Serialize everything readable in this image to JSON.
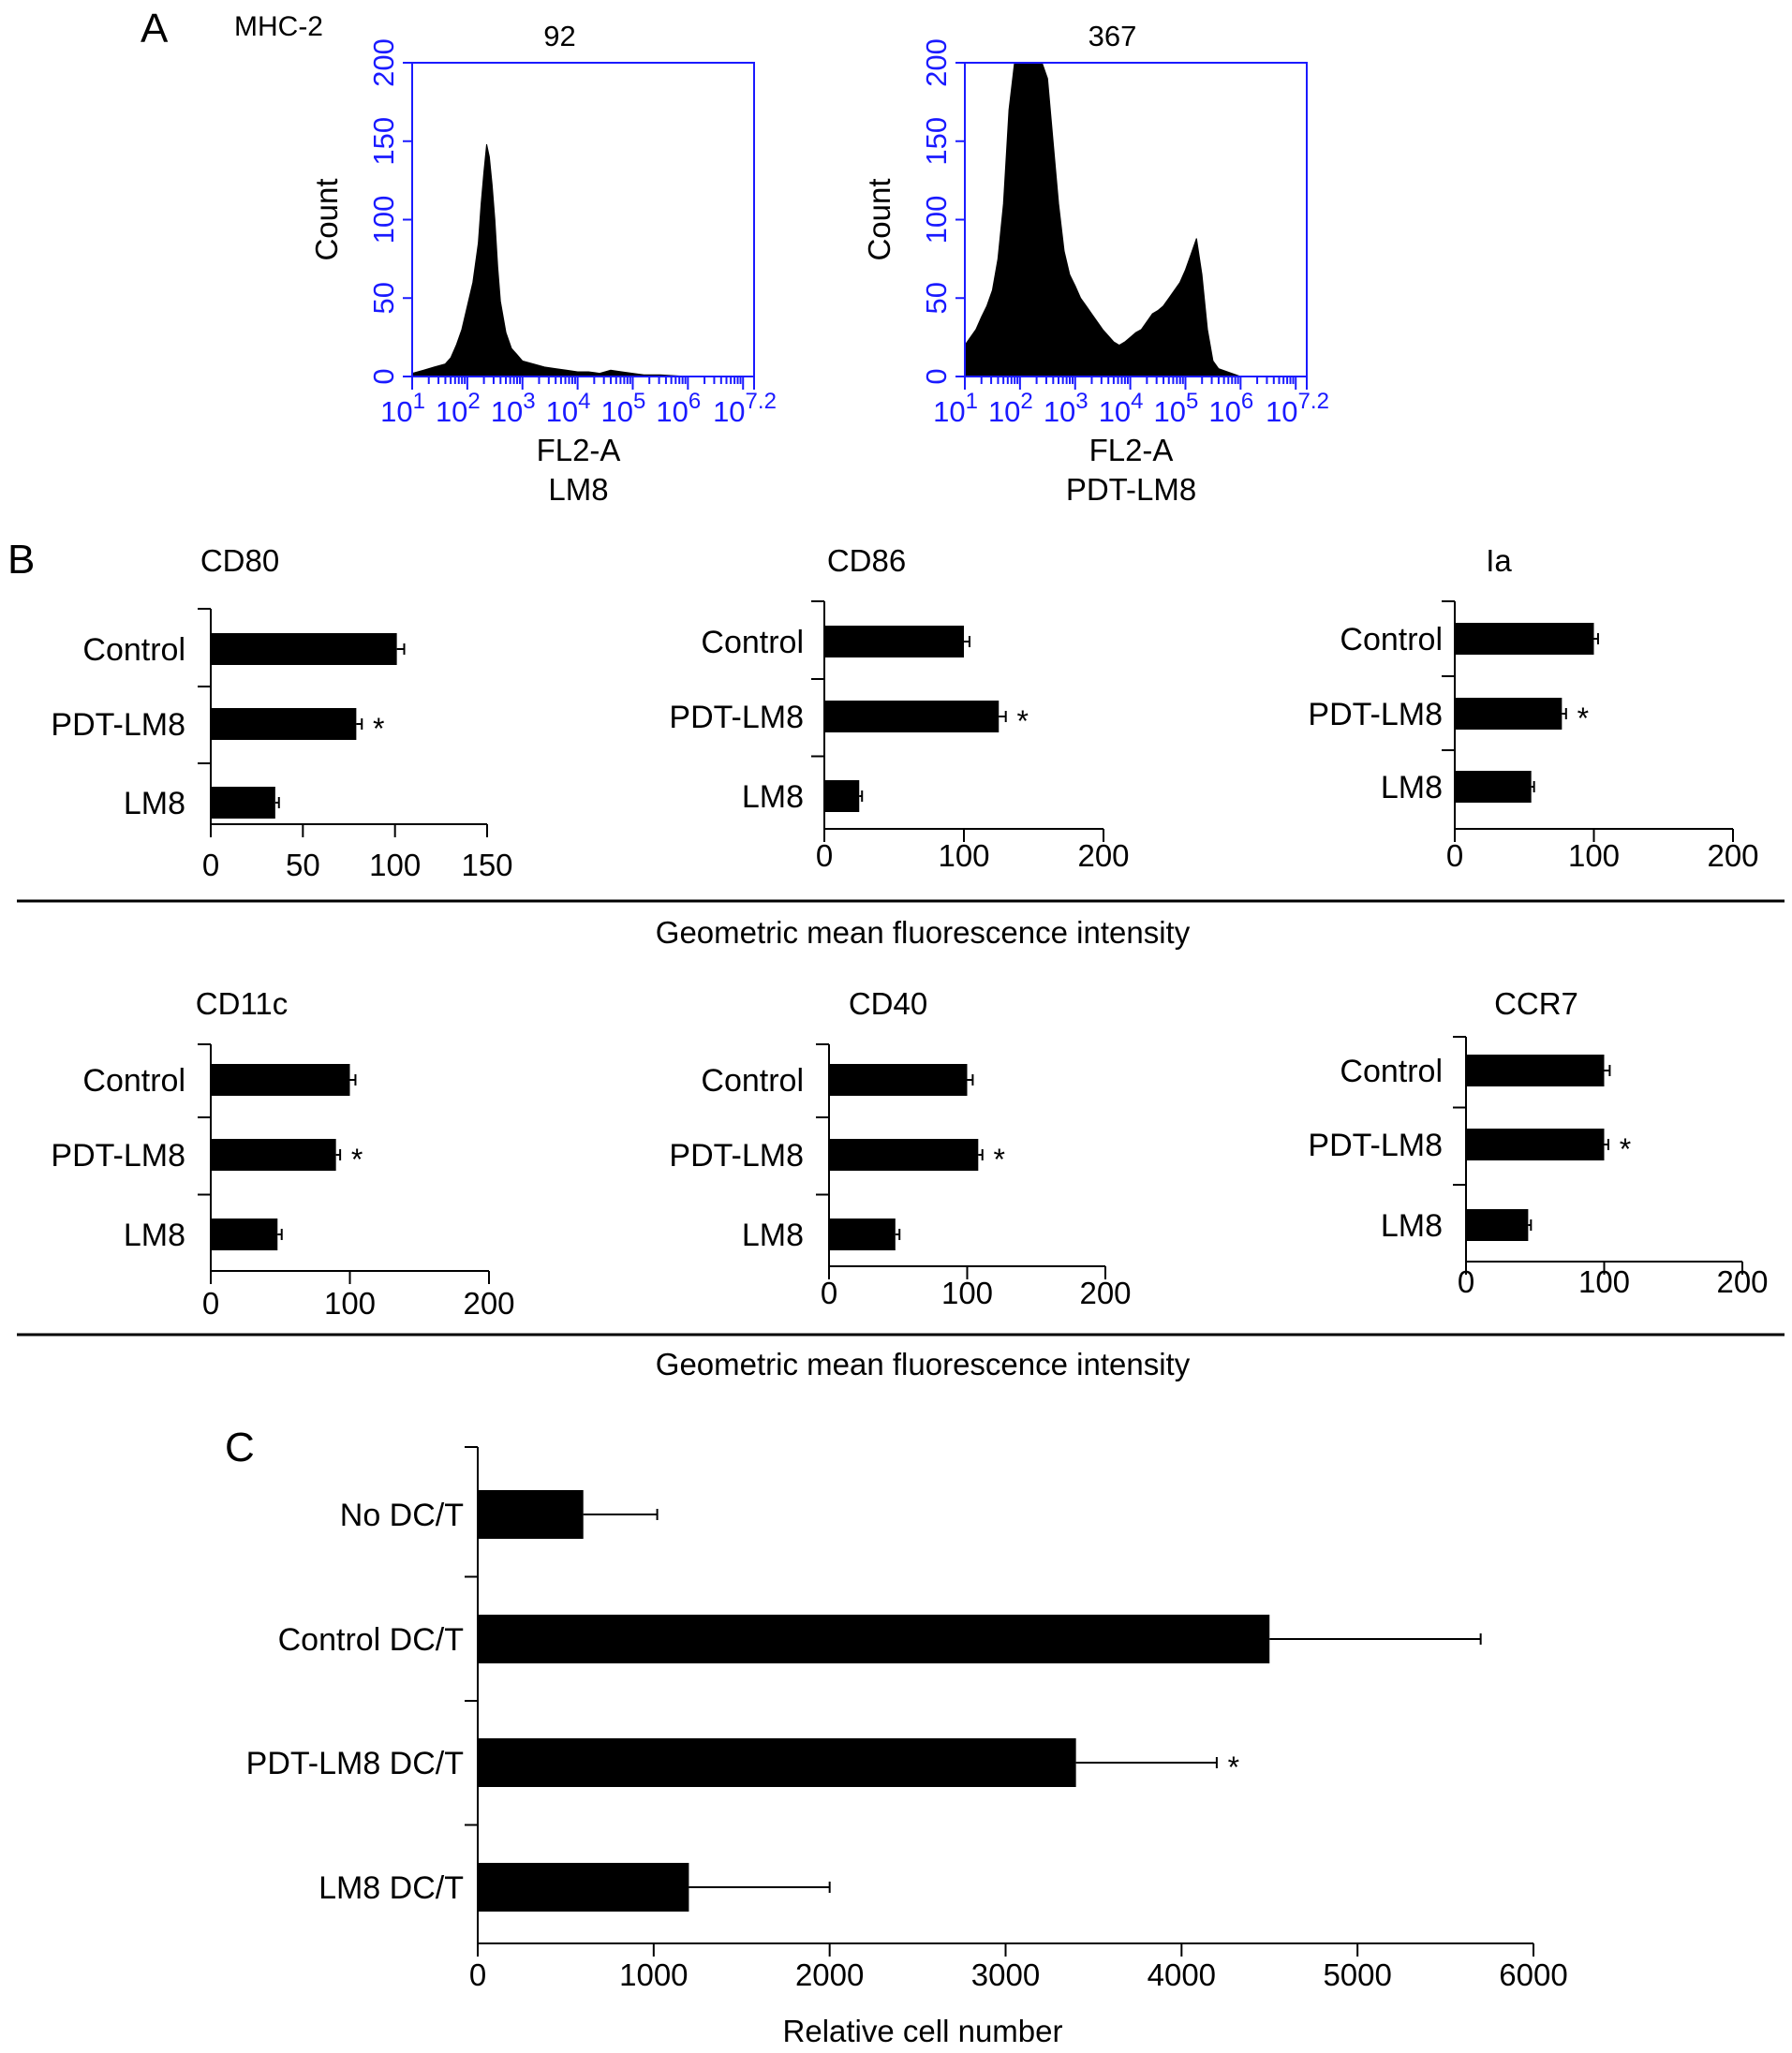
{
  "panel_labels": {
    "a": "A",
    "b": "B",
    "c": "C"
  },
  "histogram_marker": "MHC-2",
  "shared_xlabel_b": "Geometric mean fluorescence intensity",
  "colors": {
    "bar": "#000000",
    "histogram_axis": "#1a1aff",
    "text": "#000000"
  },
  "chart_data": [
    {
      "id": "hist-lm8",
      "type": "area",
      "title": "92",
      "xlabel": "FL2-A",
      "sample": "LM8",
      "ylabel": "Count",
      "x_scale": "log10",
      "xlim_exp": [
        1,
        7.2
      ],
      "ylim": [
        0,
        200
      ],
      "xtick_exponents": [
        "1",
        "2",
        "3",
        "4",
        "5",
        "6",
        "7.2"
      ],
      "yticks": [
        "0",
        "50",
        "100",
        "150",
        "200"
      ],
      "x_exp": [
        1.0,
        1.2,
        1.4,
        1.6,
        1.7,
        1.8,
        1.9,
        2.0,
        2.1,
        2.2,
        2.25,
        2.3,
        2.35,
        2.4,
        2.45,
        2.5,
        2.55,
        2.6,
        2.7,
        2.8,
        2.9,
        3.0,
        3.2,
        3.4,
        3.6,
        3.8,
        4.0,
        4.2,
        4.4,
        4.6,
        4.8,
        5.0,
        5.2,
        5.5,
        6.0,
        7.2
      ],
      "y": [
        2,
        4,
        6,
        8,
        12,
        20,
        30,
        45,
        60,
        85,
        110,
        130,
        148,
        140,
        122,
        100,
        70,
        48,
        28,
        18,
        14,
        10,
        8,
        6,
        5,
        4,
        3,
        3,
        2,
        4,
        3,
        2,
        1,
        1,
        0,
        0
      ]
    },
    {
      "id": "hist-pdt-lm8",
      "type": "area",
      "title": "367",
      "xlabel": "FL2-A",
      "sample": "PDT-LM8",
      "ylabel": "Count",
      "x_scale": "log10",
      "xlim_exp": [
        1,
        7.2
      ],
      "ylim": [
        0,
        200
      ],
      "xtick_exponents": [
        "1",
        "2",
        "3",
        "4",
        "5",
        "6",
        "7.2"
      ],
      "yticks": [
        "0",
        "50",
        "100",
        "150",
        "200"
      ],
      "x_exp": [
        1.0,
        1.1,
        1.2,
        1.3,
        1.4,
        1.5,
        1.6,
        1.7,
        1.8,
        1.9,
        2.0,
        2.1,
        2.2,
        2.3,
        2.4,
        2.5,
        2.6,
        2.7,
        2.8,
        2.9,
        3.0,
        3.1,
        3.2,
        3.3,
        3.4,
        3.5,
        3.6,
        3.7,
        3.8,
        3.9,
        4.0,
        4.1,
        4.2,
        4.3,
        4.4,
        4.5,
        4.6,
        4.7,
        4.8,
        4.9,
        5.0,
        5.1,
        5.2,
        5.3,
        5.4,
        5.5,
        5.6,
        6.0,
        7.2
      ],
      "y": [
        20,
        25,
        30,
        38,
        45,
        55,
        75,
        110,
        170,
        200,
        200,
        200,
        200,
        200,
        200,
        190,
        150,
        110,
        80,
        65,
        58,
        50,
        45,
        40,
        35,
        30,
        26,
        22,
        20,
        22,
        25,
        28,
        30,
        35,
        40,
        42,
        45,
        50,
        55,
        60,
        68,
        78,
        88,
        65,
        30,
        10,
        5,
        0,
        0
      ]
    },
    {
      "id": "cd80",
      "type": "bar",
      "orientation": "horizontal",
      "title": "CD80",
      "categories": [
        "Control",
        "PDT-LM8",
        "LM8"
      ],
      "values": [
        101,
        79,
        35
      ],
      "errors": [
        4,
        3,
        2
      ],
      "significant": [
        "",
        "*",
        ""
      ],
      "xlim": [
        0,
        150
      ],
      "xticks": [
        "0",
        "50",
        "100",
        "150"
      ]
    },
    {
      "id": "cd86",
      "type": "bar",
      "orientation": "horizontal",
      "title": "CD86",
      "categories": [
        "Control",
        "PDT-LM8",
        "LM8"
      ],
      "values": [
        100,
        125,
        25
      ],
      "errors": [
        4,
        5,
        2
      ],
      "significant": [
        "",
        "*",
        ""
      ],
      "xlim": [
        0,
        200
      ],
      "xticks": [
        "0",
        "100",
        "200"
      ]
    },
    {
      "id": "ia",
      "type": "bar",
      "orientation": "horizontal",
      "title": "Ia",
      "categories": [
        "Control",
        "PDT-LM8",
        "LM8"
      ],
      "values": [
        100,
        77,
        55
      ],
      "errors": [
        3,
        3,
        2
      ],
      "significant": [
        "",
        "*",
        ""
      ],
      "xlim": [
        0,
        200
      ],
      "xticks": [
        "0",
        "100",
        "200"
      ]
    },
    {
      "id": "cd11c",
      "type": "bar",
      "orientation": "horizontal",
      "title": "CD11c",
      "categories": [
        "Control",
        "PDT-LM8",
        "LM8"
      ],
      "values": [
        100,
        90,
        48
      ],
      "errors": [
        4,
        3,
        3
      ],
      "significant": [
        "",
        "*",
        ""
      ],
      "xlim": [
        0,
        200
      ],
      "xticks": [
        "0",
        "100",
        "200"
      ]
    },
    {
      "id": "cd40",
      "type": "bar",
      "orientation": "horizontal",
      "title": "CD40",
      "categories": [
        "Control",
        "PDT-LM8",
        "LM8"
      ],
      "values": [
        100,
        108,
        48
      ],
      "errors": [
        4,
        3,
        3
      ],
      "significant": [
        "",
        "*",
        ""
      ],
      "xlim": [
        0,
        200
      ],
      "xticks": [
        "0",
        "100",
        "200"
      ]
    },
    {
      "id": "ccr7",
      "type": "bar",
      "orientation": "horizontal",
      "title": "CCR7",
      "categories": [
        "Control",
        "PDT-LM8",
        "LM8"
      ],
      "values": [
        100,
        100,
        45
      ],
      "errors": [
        4,
        3,
        2
      ],
      "significant": [
        "",
        "*",
        ""
      ],
      "xlim": [
        0,
        200
      ],
      "xticks": [
        "0",
        "100",
        "200"
      ]
    },
    {
      "id": "relative-cell-number",
      "type": "bar",
      "orientation": "horizontal",
      "categories": [
        "No DC/T",
        "Control DC/T",
        "PDT-LM8 DC/T",
        "LM8 DC/T"
      ],
      "values": [
        600,
        4500,
        3400,
        1200
      ],
      "errors": [
        420,
        1200,
        800,
        800
      ],
      "significant": [
        "",
        "",
        "*",
        ""
      ],
      "xlabel": "Relative cell number",
      "xlim": [
        0,
        6000
      ],
      "xticks": [
        "0",
        "1000",
        "2000",
        "3000",
        "4000",
        "5000",
        "6000"
      ]
    }
  ]
}
